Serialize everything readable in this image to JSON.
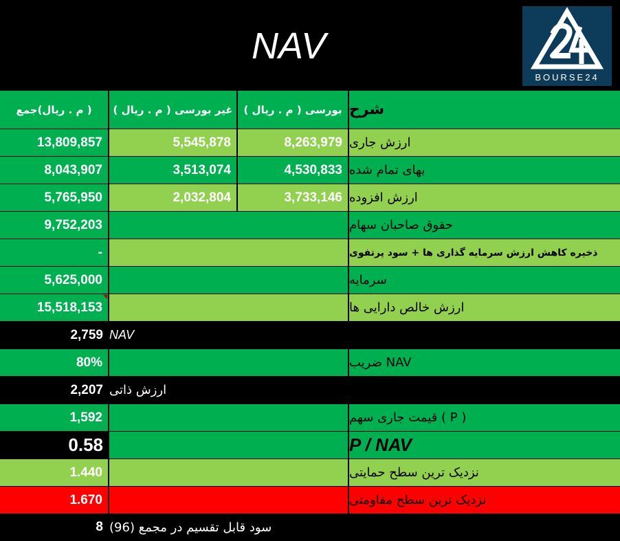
{
  "title": "NAV",
  "logo": {
    "text": "BOURSE24",
    "mark": "24"
  },
  "columns": {
    "description": "شرح",
    "bourse": "بورسی ( م . ریال )",
    "non_bourse": "غیر بورسی ( م . ریال )",
    "total": "( م . ریال)جمع"
  },
  "rows": [
    {
      "label": "ارزش جاری",
      "bourse": "8,263,979",
      "non_bourse": "5,545,878",
      "total": "13,809,857"
    },
    {
      "label": "بهای تمام شده",
      "bourse": "4,530,833",
      "non_bourse": "3,513,074",
      "total": "8,043,907"
    },
    {
      "label": "ارزش افزوده",
      "bourse": "3,733,146",
      "non_bourse": "2,032,804",
      "total": "5,765,950"
    },
    {
      "label": "حقوق صاحبان سهام",
      "total": "9,752,203"
    },
    {
      "label": "ذخیره کاهش ارزش سرمایه گذاری ها + سود پرتفوی",
      "total": "-"
    },
    {
      "label": "سرمایه",
      "total": "5,625,000"
    },
    {
      "label": "ارزش خالص دارایی ها",
      "total": "15,518,153"
    },
    {
      "label": "NAV",
      "total": "2,759"
    },
    {
      "label": "NAV ضریب",
      "total": "80%"
    },
    {
      "label": "ارزش ذاتی",
      "total": "2,207"
    },
    {
      "label": "( P ) قیمت جاری سهم",
      "total": "1,592"
    },
    {
      "label": "P / NAV",
      "total": "0.58"
    },
    {
      "label": "نزدیک ترین سطح حمایتی",
      "total": "1.440"
    },
    {
      "label": "نزدیک ترین سطح مقاومتی",
      "total": "1.670"
    },
    {
      "label": "سود قابل تقسیم در مجمع (96)",
      "total": "8"
    }
  ],
  "colors": {
    "green": "#00b050",
    "light_green": "#92d050",
    "red": "#ff0000",
    "black": "#000000",
    "logo_bg": "#0d3b5a"
  }
}
